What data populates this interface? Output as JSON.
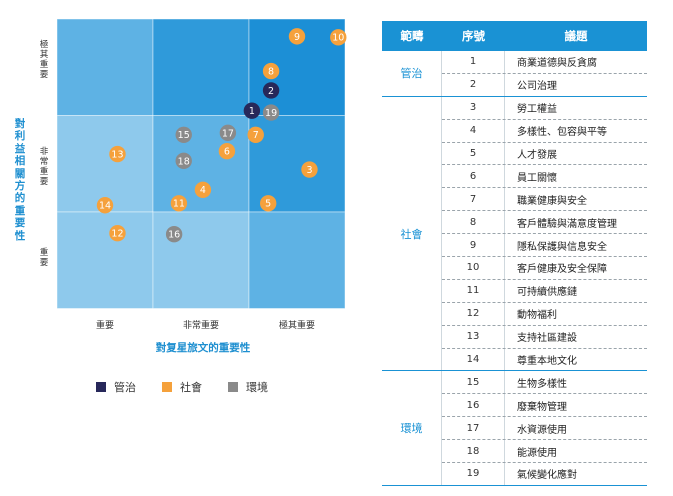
{
  "matrix": {
    "y_title": "對利益相關方的重要性",
    "x_title": "對复星旅文的重要性",
    "x_levels": [
      "重要",
      "非常重要",
      "極其重要"
    ],
    "y_levels": [
      "極其重要",
      "非常重要",
      "重要"
    ],
    "colors": {
      "governance": "#27285a",
      "social": "#f5a13c",
      "environment": "#8a8a8a",
      "cell_low": "#8ec9ec",
      "cell_mid": "#5eb2e4",
      "cell_high": "#2f9ada",
      "cell_top": "#1c8fd6"
    },
    "points": [
      {
        "id": "1",
        "category": "governance",
        "x": 2.03,
        "y": 2.05
      },
      {
        "id": "2",
        "category": "governance",
        "x": 2.23,
        "y": 2.26
      },
      {
        "id": "3",
        "category": "social",
        "x": 2.63,
        "y": 1.44
      },
      {
        "id": "4",
        "category": "social",
        "x": 1.52,
        "y": 1.23
      },
      {
        "id": "5",
        "category": "social",
        "x": 2.2,
        "y": 1.09
      },
      {
        "id": "6",
        "category": "social",
        "x": 1.77,
        "y": 1.63
      },
      {
        "id": "7",
        "category": "social",
        "x": 2.07,
        "y": 1.8
      },
      {
        "id": "8",
        "category": "social",
        "x": 2.23,
        "y": 2.46
      },
      {
        "id": "9",
        "category": "social",
        "x": 2.5,
        "y": 2.82
      },
      {
        "id": "10",
        "category": "social",
        "x": 2.93,
        "y": 2.81
      },
      {
        "id": "11",
        "category": "social",
        "x": 1.27,
        "y": 1.09
      },
      {
        "id": "12",
        "category": "social",
        "x": 0.63,
        "y": 0.78
      },
      {
        "id": "13",
        "category": "social",
        "x": 0.63,
        "y": 1.6
      },
      {
        "id": "14",
        "category": "social",
        "x": 0.5,
        "y": 1.07
      },
      {
        "id": "15",
        "category": "environment",
        "x": 1.32,
        "y": 1.8
      },
      {
        "id": "16",
        "category": "environment",
        "x": 1.22,
        "y": 0.77
      },
      {
        "id": "17",
        "category": "environment",
        "x": 1.78,
        "y": 1.82
      },
      {
        "id": "18",
        "category": "environment",
        "x": 1.32,
        "y": 1.53
      },
      {
        "id": "19",
        "category": "environment",
        "x": 2.23,
        "y": 2.03
      }
    ]
  },
  "legend": [
    {
      "label": "管治",
      "color": "#27285a"
    },
    {
      "label": "社會",
      "color": "#f5a13c"
    },
    {
      "label": "環境",
      "color": "#8a8a8a"
    }
  ],
  "table": {
    "headers": [
      "範疇",
      "序號",
      "議題"
    ],
    "groups": [
      {
        "category": "管治",
        "rows": [
          {
            "num": "1",
            "topic": "商業道德與反貪腐"
          },
          {
            "num": "2",
            "topic": "公司治理"
          }
        ]
      },
      {
        "category": "社會",
        "rows": [
          {
            "num": "3",
            "topic": "勞工權益"
          },
          {
            "num": "4",
            "topic": "多樣性、包容與平等"
          },
          {
            "num": "5",
            "topic": "人才發展"
          },
          {
            "num": "6",
            "topic": "員工關懷"
          },
          {
            "num": "7",
            "topic": "職業健康與安全"
          },
          {
            "num": "8",
            "topic": "客戶體驗與滿意度管理"
          },
          {
            "num": "9",
            "topic": "隱私保護與信息安全"
          },
          {
            "num": "10",
            "topic": "客戶健康及安全保障"
          },
          {
            "num": "11",
            "topic": "可持續供應鏈"
          },
          {
            "num": "12",
            "topic": "動物福利"
          },
          {
            "num": "13",
            "topic": "支持社區建設"
          },
          {
            "num": "14",
            "topic": "尊重本地文化"
          }
        ]
      },
      {
        "category": "環境",
        "rows": [
          {
            "num": "15",
            "topic": "生物多樣性"
          },
          {
            "num": "16",
            "topic": "廢棄物管理"
          },
          {
            "num": "17",
            "topic": "水資源使用"
          },
          {
            "num": "18",
            "topic": "能源使用"
          },
          {
            "num": "19",
            "topic": "氣候變化應對"
          }
        ]
      }
    ]
  }
}
